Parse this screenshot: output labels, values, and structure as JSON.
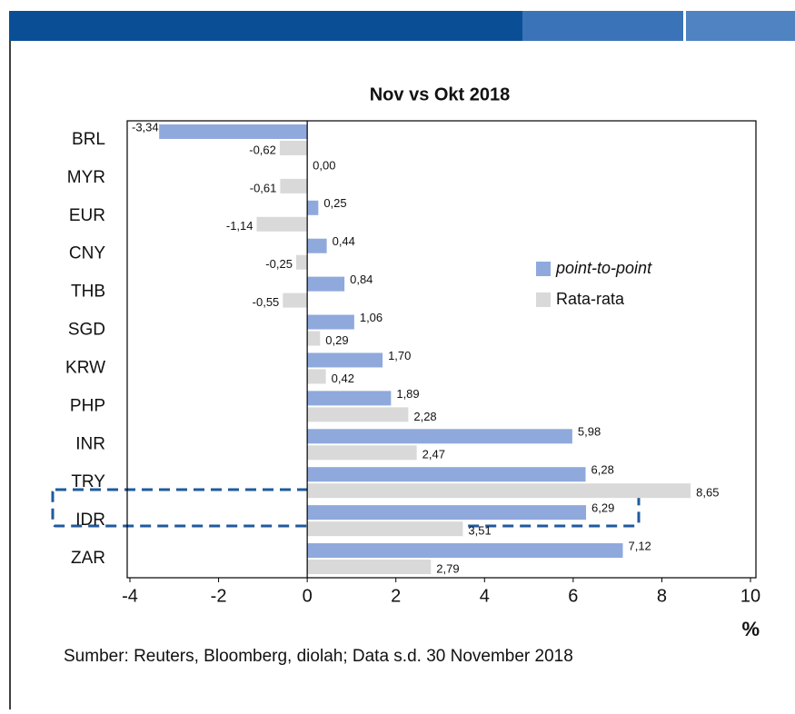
{
  "chart_data": {
    "type": "barh",
    "title": "Nov vs Okt 2018",
    "categories": [
      "BRL",
      "MYR",
      "EUR",
      "CNY",
      "THB",
      "SGD",
      "KRW",
      "PHP",
      "INR",
      "TRY",
      "IDR",
      "ZAR"
    ],
    "series": [
      {
        "name": "point-to-point",
        "color": "#8fa9dc",
        "values": [
          -3.34,
          0.0,
          0.25,
          0.44,
          0.84,
          1.06,
          1.7,
          1.89,
          5.98,
          6.28,
          6.29,
          7.12
        ],
        "value_labels": [
          "-3,34",
          "0,00",
          "0,25",
          "0,44",
          "0,84",
          "1,06",
          "1,70",
          "1,89",
          "5,98",
          "6,28",
          "6,29",
          "7,12"
        ]
      },
      {
        "name": "Rata-rata",
        "color": "#d9d9d9",
        "values": [
          -0.62,
          -0.61,
          -1.14,
          -0.25,
          -0.55,
          0.29,
          0.42,
          2.28,
          2.47,
          8.65,
          3.51,
          2.79
        ],
        "value_labels": [
          "-0,62",
          "-0,61",
          "-1,14",
          "-0,25",
          "-0,55",
          "0,29",
          "0,42",
          "2,28",
          "2,47",
          "8,65",
          "3,51",
          "2,79"
        ]
      }
    ],
    "xlim": [
      -4,
      10
    ],
    "xticks": [
      -4,
      -2,
      0,
      2,
      4,
      6,
      8,
      10
    ],
    "x_label": "%",
    "legend": "right",
    "source": "Sumber: Reuters, Bloomberg, diolah; Data s.d. 30 November 2018"
  }
}
